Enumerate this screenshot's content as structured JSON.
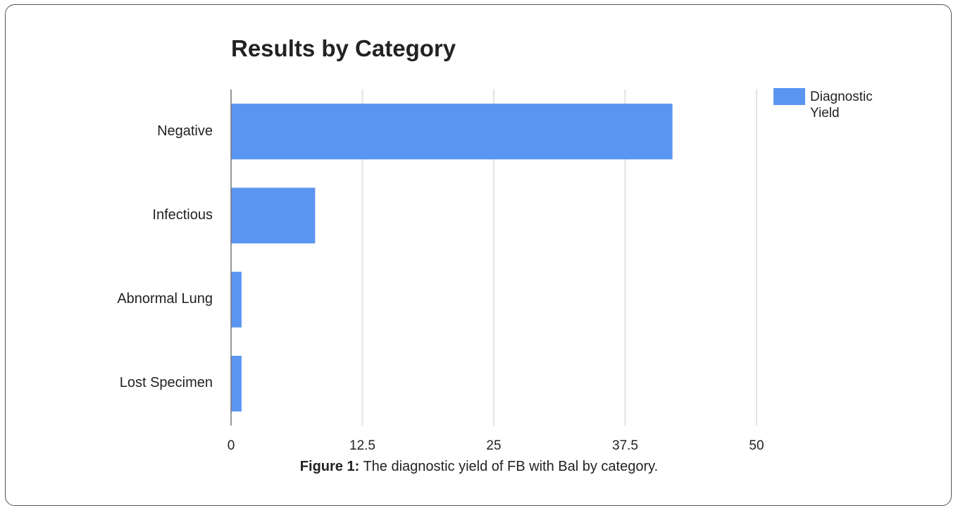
{
  "caption": {
    "label": "Figure 1:",
    "text": "The diagnostic yield of FB with Bal by category."
  },
  "chart_data": {
    "type": "bar",
    "orientation": "horizontal",
    "title": "Results by Category",
    "xlabel": "",
    "ylabel": "",
    "categories": [
      "Negative",
      "Infectious",
      "Abnormal Lung",
      "Lost Specimen"
    ],
    "series": [
      {
        "name": "Diagnostic Yield",
        "values": [
          42,
          8,
          1,
          1
        ],
        "color": "#5b95f2"
      }
    ],
    "xlim": [
      0,
      50
    ],
    "xticks": [
      "0",
      "12.5",
      "25",
      "37.5",
      "50"
    ],
    "grid": true,
    "legend_position": "right"
  }
}
